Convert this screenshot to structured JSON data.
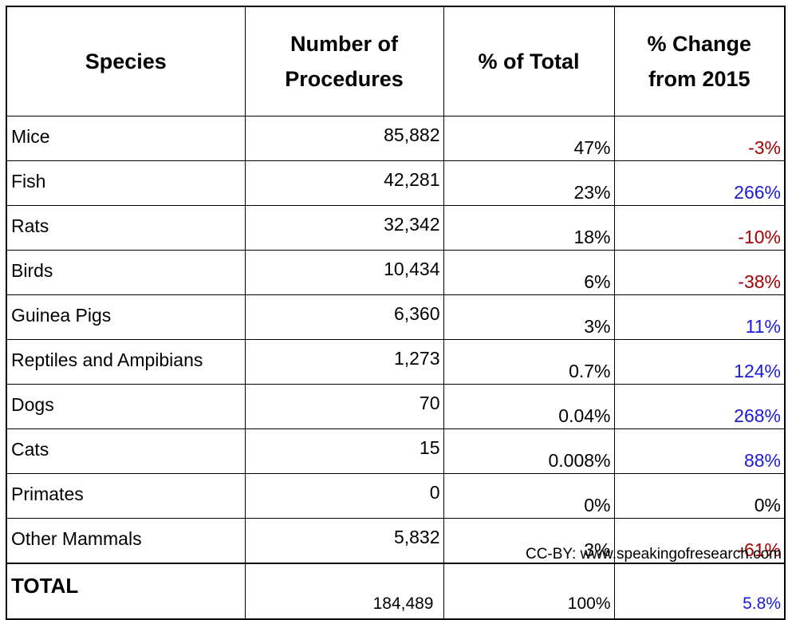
{
  "table": {
    "header": [
      "Species",
      "Number of Procedures",
      "% of Total",
      "% Change from 2015"
    ],
    "rows": [
      [
        "Mice",
        "85,882",
        "47%",
        "-3%"
      ],
      [
        "Fish",
        "42,281",
        "23%",
        "266%"
      ],
      [
        "Rats",
        "32,342",
        "18%",
        "-10%"
      ],
      [
        "Birds",
        "10,434",
        "6%",
        "-38%"
      ],
      [
        "Guinea Pigs",
        "6,360",
        "3%",
        "11%"
      ],
      [
        "Reptiles and Ampibians",
        "1,273",
        "0.7%",
        "124%"
      ],
      [
        "Dogs",
        "70",
        "0.04%",
        "268%"
      ],
      [
        "Cats",
        "15",
        "0.008%",
        "88%"
      ],
      [
        "Primates",
        "0",
        "0%",
        "0%"
      ],
      [
        "Other Mammals",
        "5,832",
        "3%",
        "-61%"
      ]
    ],
    "total": [
      "TOTAL",
      "184,489",
      "100%",
      "5.8%"
    ]
  },
  "footer": "CC-BY: www.speakingofresearch.com"
}
